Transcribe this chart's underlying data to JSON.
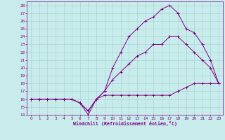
{
  "background_color": "#c8ecec",
  "grid_color": "#aad4d4",
  "line_color": "#800080",
  "xlabel": "Windchill (Refroidissement éolien,°C)",
  "xlim": [
    -0.5,
    23.5
  ],
  "ylim": [
    14,
    28.5
  ],
  "xticks": [
    0,
    1,
    2,
    3,
    4,
    5,
    6,
    7,
    8,
    9,
    10,
    11,
    12,
    13,
    14,
    15,
    16,
    17,
    18,
    19,
    20,
    21,
    22,
    23
  ],
  "yticks": [
    14,
    15,
    16,
    17,
    18,
    19,
    20,
    21,
    22,
    23,
    24,
    25,
    26,
    27,
    28
  ],
  "line1_x": [
    0,
    1,
    2,
    3,
    4,
    5,
    6,
    7,
    8,
    9,
    10,
    11,
    12,
    13,
    14,
    15,
    16,
    17,
    18,
    19,
    20,
    21,
    22,
    23
  ],
  "line1_y": [
    16,
    16,
    16,
    16,
    16,
    16,
    15.5,
    14,
    16,
    16.5,
    16.5,
    16.5,
    16.5,
    16.5,
    16.5,
    16.5,
    16.5,
    16.5,
    17,
    17.5,
    18,
    18,
    18,
    18
  ],
  "line2_x": [
    0,
    1,
    2,
    3,
    4,
    5,
    6,
    7,
    8,
    9,
    10,
    11,
    12,
    13,
    14,
    15,
    16,
    17,
    18,
    19,
    20,
    21,
    22,
    23
  ],
  "line2_y": [
    16,
    16,
    16,
    16,
    16,
    16,
    15.5,
    14.5,
    16,
    17,
    18.5,
    19.5,
    20.5,
    21.5,
    22,
    23,
    23,
    24,
    24,
    23,
    22,
    21,
    20,
    18
  ],
  "line3_x": [
    0,
    1,
    2,
    3,
    4,
    5,
    6,
    7,
    8,
    9,
    10,
    11,
    12,
    13,
    14,
    15,
    16,
    17,
    18,
    19,
    20,
    21,
    22,
    23
  ],
  "line3_y": [
    16,
    16,
    16,
    16,
    16,
    16,
    15.5,
    14.5,
    16,
    17,
    20,
    22,
    24,
    25,
    26,
    26.5,
    27.5,
    28,
    27,
    25,
    24.5,
    23,
    21,
    18
  ]
}
